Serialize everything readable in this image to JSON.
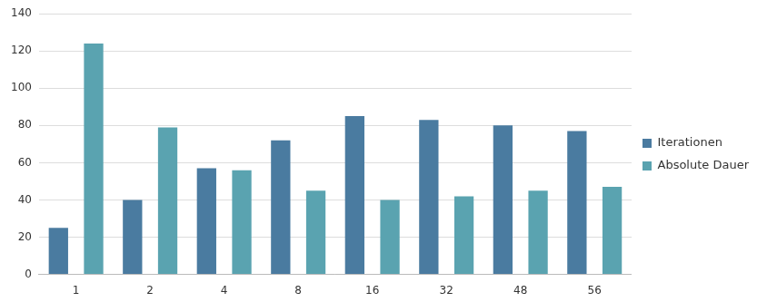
{
  "chart_data": {
    "type": "bar",
    "categories": [
      "1",
      "2",
      "4",
      "8",
      "16",
      "32",
      "48",
      "56"
    ],
    "series": [
      {
        "name": "Iterationen",
        "color": "#4a7ba0",
        "values": [
          25,
          40,
          57,
          72,
          85,
          83,
          80,
          77
        ]
      },
      {
        "name": "Absolute Dauer",
        "color": "#5aa3b0",
        "values": [
          124,
          79,
          56,
          45,
          40,
          42,
          45,
          47
        ]
      }
    ],
    "ylim": [
      0,
      140
    ],
    "yticks": [
      0,
      20,
      40,
      60,
      80,
      100,
      120,
      140
    ],
    "grid": true,
    "legend": "right"
  }
}
